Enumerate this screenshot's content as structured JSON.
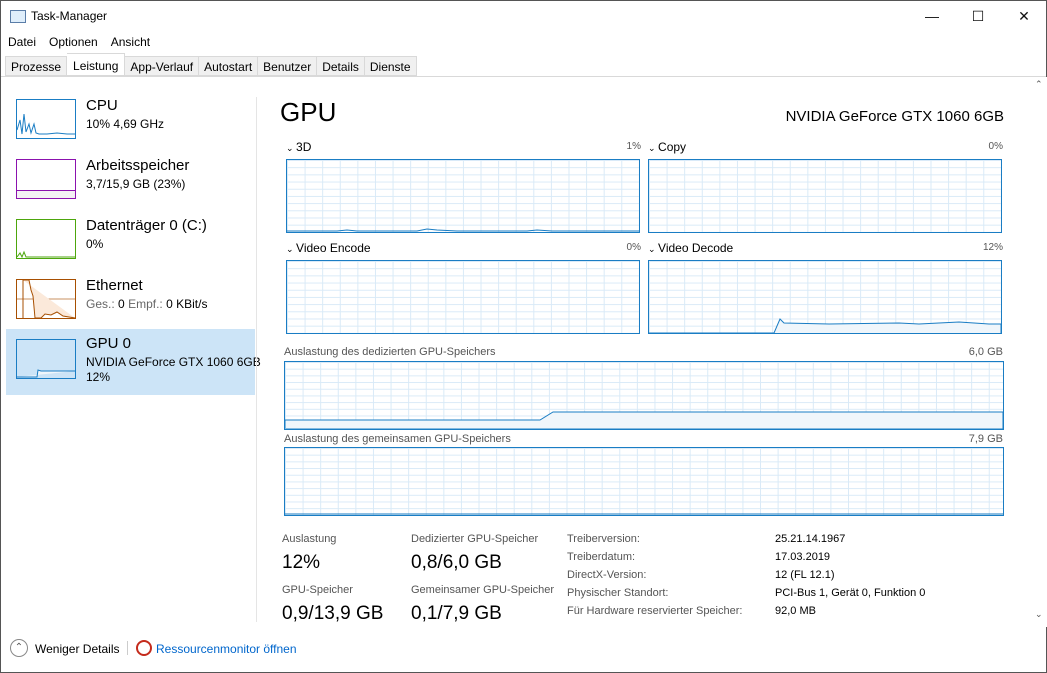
{
  "window": {
    "title": "Task-Manager",
    "minimize": "—",
    "maximize": "☐",
    "close": "✕"
  },
  "menu": [
    "Datei",
    "Optionen",
    "Ansicht"
  ],
  "tabs": [
    "Prozesse",
    "Leistung",
    "App-Verlauf",
    "Autostart",
    "Benutzer",
    "Details",
    "Dienste"
  ],
  "active_tab": "Leistung",
  "sidebar": [
    {
      "name": "CPU",
      "sub": "10% 4,69 GHz",
      "color": "#1a7dc4"
    },
    {
      "name": "Arbeitsspeicher",
      "sub": "3,7/15,9 GB (23%)",
      "color": "#8b12ae"
    },
    {
      "name": "Datenträger 0 (C:)",
      "sub": "0%",
      "color": "#4da60c"
    },
    {
      "name": "Ethernet",
      "sub_a": "Ges.:",
      "sub_b": "0",
      "sub_c": "Empf.:",
      "sub_d": "0 KBit/s",
      "color": "#a74f01"
    },
    {
      "name": "GPU 0",
      "sub": "NVIDIA GeForce GTX 1060 6GB",
      "sub2": "12%",
      "color": "#1a7dc4"
    }
  ],
  "main": {
    "title": "GPU",
    "model": "NVIDIA GeForce GTX 1060 6GB",
    "engines": [
      {
        "label": "3D",
        "pct": "1%"
      },
      {
        "label": "Copy",
        "pct": "0%"
      },
      {
        "label": "Video Encode",
        "pct": "0%"
      },
      {
        "label": "Video Decode",
        "pct": "12%"
      }
    ],
    "dedicated": {
      "label": "Auslastung des dedizierten GPU-Speichers",
      "max": "6,0 GB"
    },
    "shared": {
      "label": "Auslastung des gemeinsamen GPU-Speichers",
      "max": "7,9 GB"
    },
    "stats": {
      "util_label": "Auslastung",
      "util": "12%",
      "ded_label": "Dedizierter GPU-Speicher",
      "ded": "0,8/6,0 GB",
      "gpumem_label": "GPU-Speicher",
      "gpumem": "0,9/13,9 GB",
      "shared_label": "Gemeinsamer GPU-Speicher",
      "shared": "0,1/7,9 GB"
    },
    "props": [
      {
        "k": "Treiberversion:",
        "v": "25.21.14.1967"
      },
      {
        "k": "Treiberdatum:",
        "v": "17.03.2019"
      },
      {
        "k": "DirectX-Version:",
        "v": "12 (FL 12.1)"
      },
      {
        "k": "Physischer Standort:",
        "v": "PCI-Bus 1, Gerät 0, Funktion 0"
      },
      {
        "k": "Für Hardware reservierter Speicher:",
        "v": "92,0 MB"
      }
    ]
  },
  "footer": {
    "less": "Weniger Details",
    "resmon": "Ressourcenmonitor öffnen"
  }
}
